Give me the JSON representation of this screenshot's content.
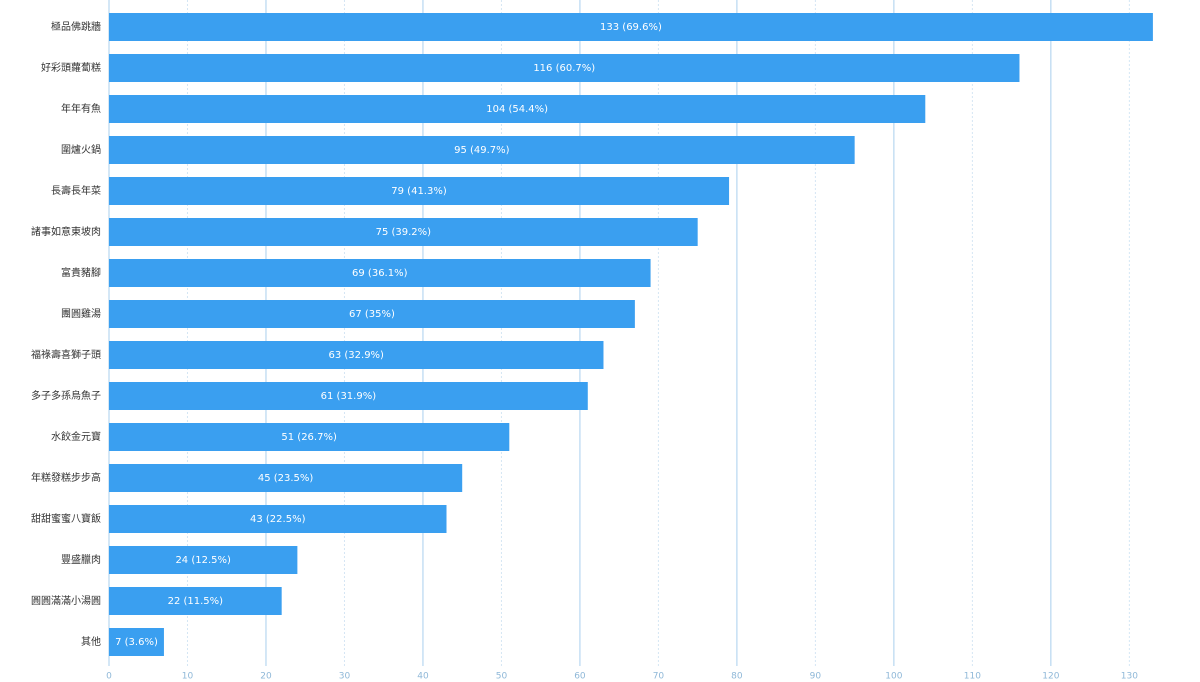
{
  "chart_data": {
    "type": "bar",
    "orientation": "horizontal",
    "categories": [
      "極品佛跳牆",
      "好彩頭蘿蔔糕",
      "年年有魚",
      "圍爐火鍋",
      "長壽長年菜",
      "諸事如意東坡肉",
      "富貴豬腳",
      "團圓雞湯",
      "福祿壽喜獅子頭",
      "多子多孫烏魚子",
      "水餃金元寶",
      "年糕發糕步步高",
      "甜甜蜜蜜八寶飯",
      "豐盛臘肉",
      "圓圓滿滿小湯圓",
      "其他"
    ],
    "values": [
      133,
      116,
      104,
      95,
      79,
      75,
      69,
      67,
      63,
      61,
      51,
      45,
      43,
      24,
      22,
      7
    ],
    "value_labels": [
      "133 (69.6%)",
      "116 (60.7%)",
      "104 (54.4%)",
      "95 (49.7%)",
      "79 (41.3%)",
      "75 (39.2%)",
      "69 (36.1%)",
      "67 (35%)",
      "63 (32.9%)",
      "61 (31.9%)",
      "51 (26.7%)",
      "45 (23.5%)",
      "43 (22.5%)",
      "24 (12.5%)",
      "22 (11.5%)",
      "7 (3.6%)"
    ],
    "color": "#3a9ff0",
    "xlim": [
      0,
      139
    ],
    "xticks": [
      0,
      10,
      20,
      30,
      40,
      50,
      60,
      70,
      80,
      90,
      100,
      110,
      120,
      130
    ],
    "grid": true
  }
}
